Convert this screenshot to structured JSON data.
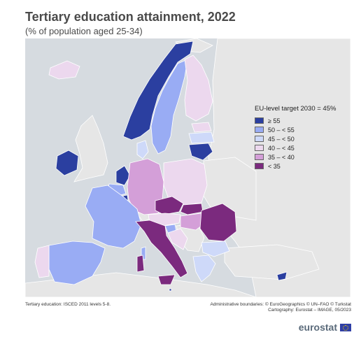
{
  "title": "Tertiary education attainment, 2022",
  "subtitle": "(% of population aged 25-34)",
  "legend": {
    "title": "EU-level target 2030 = 45%",
    "items": [
      {
        "label": "≥ 55",
        "color": "#2b3fa0"
      },
      {
        "label": "50 – < 55",
        "color": "#99acf4"
      },
      {
        "label": "45 – < 50",
        "color": "#ced9f9"
      },
      {
        "label": "40 – < 45",
        "color": "#ecd8ee"
      },
      {
        "label": "35 – < 40",
        "color": "#d49fd8"
      },
      {
        "label": "< 35",
        "color": "#7b2a7e"
      }
    ]
  },
  "colors": {
    "sea": "#d6dbe0",
    "non_eu": "#e6e6e6",
    "border": "#ffffff"
  },
  "footnotes": {
    "left": "Tertiary education: ISCED 2011 levels 5-8.",
    "right_line1": "Administrative boundaries: © EuroGeographics © UN–FAO © Turkstat",
    "right_line2": "Cartography: Eurostat – IMAGE, 05/2023"
  },
  "brand": {
    "name": "eurostat",
    "icon": "eu-flag-icon"
  }
}
